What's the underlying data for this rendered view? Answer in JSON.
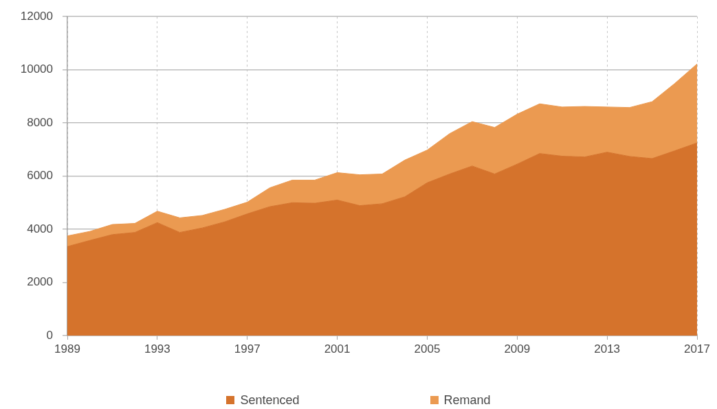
{
  "chart_data": {
    "type": "area",
    "stacked": true,
    "x": [
      1989,
      1990,
      1991,
      1992,
      1993,
      1994,
      1995,
      1996,
      1997,
      1998,
      1999,
      2000,
      2001,
      2002,
      2003,
      2004,
      2005,
      2006,
      2007,
      2008,
      2009,
      2010,
      2011,
      2012,
      2013,
      2014,
      2015,
      2016,
      2017
    ],
    "series": [
      {
        "name": "Sentenced",
        "color": "#d5732c",
        "values": [
          3350,
          3580,
          3800,
          3880,
          4250,
          3880,
          4050,
          4280,
          4580,
          4850,
          5000,
          4980,
          5100,
          4890,
          4960,
          5220,
          5750,
          6080,
          6380,
          6080,
          6450,
          6850,
          6750,
          6720,
          6900,
          6740,
          6660,
          6950,
          7250
        ]
      },
      {
        "name": "Remand",
        "color": "#eb9a51",
        "values": [
          400,
          340,
          380,
          340,
          430,
          550,
          470,
          470,
          440,
          710,
          850,
          870,
          1030,
          1160,
          1120,
          1380,
          1230,
          1520,
          1670,
          1750,
          1880,
          1870,
          1850,
          1900,
          1700,
          1840,
          2140,
          2530,
          2970
        ]
      }
    ],
    "xlim": [
      1989,
      2017
    ],
    "xticks": [
      1989,
      1993,
      1997,
      2001,
      2005,
      2009,
      2013,
      2017
    ],
    "ylim": [
      0,
      12000
    ],
    "yticks": [
      0,
      2000,
      4000,
      6000,
      8000,
      10000,
      12000
    ],
    "grid": true,
    "legend": "bottom",
    "marker": "none"
  }
}
